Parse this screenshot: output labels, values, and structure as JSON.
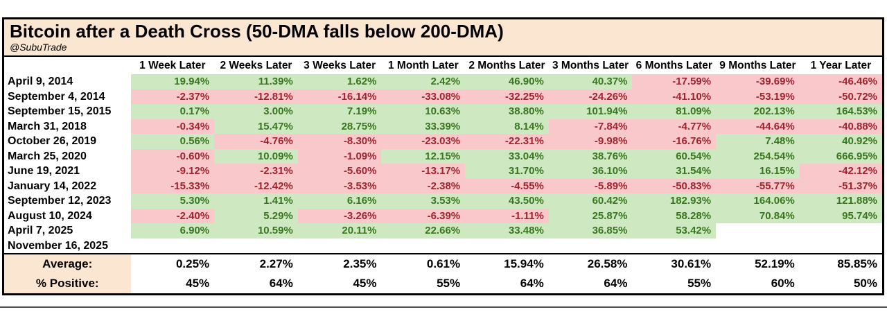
{
  "title": "Bitcoin after a Death Cross (50-DMA falls below 200-DMA)",
  "subtitle": "@SubuTrade",
  "colors": {
    "positive_fill": "#cee9c2",
    "negative_fill": "#f8c8ca",
    "positive_text": "#38761d",
    "negative_text": "#9e2430",
    "title_band_fill": "#fbe6d2",
    "border": "#000000"
  },
  "chart_data": {
    "type": "table",
    "title": "Bitcoin after a Death Cross (50-DMA falls below 200-DMA)",
    "subtitle": "@SubuTrade",
    "columns": [
      "1 Week Later",
      "2 Weeks Later",
      "3 Weeks Later",
      "1 Month Later",
      "2 Months Later",
      "3 Months Later",
      "6 Months Later",
      "9 Months Later",
      "1 Year Later"
    ],
    "rows": [
      {
        "date": "April 9, 2014",
        "values": [
          "19.94%",
          "11.39%",
          "1.62%",
          "2.42%",
          "46.90%",
          "40.37%",
          "-17.59%",
          "-39.69%",
          "-46.46%"
        ]
      },
      {
        "date": "September 4, 2014",
        "values": [
          "-2.37%",
          "-12.81%",
          "-16.14%",
          "-33.08%",
          "-32.25%",
          "-24.26%",
          "-41.10%",
          "-53.19%",
          "-50.72%"
        ]
      },
      {
        "date": "September 15, 2015",
        "values": [
          "0.17%",
          "3.00%",
          "7.19%",
          "10.63%",
          "38.80%",
          "101.94%",
          "81.09%",
          "202.13%",
          "164.53%"
        ]
      },
      {
        "date": "March 31, 2018",
        "values": [
          "-0.34%",
          "15.47%",
          "28.75%",
          "33.39%",
          "8.14%",
          "-7.84%",
          "-4.77%",
          "-44.64%",
          "-40.88%"
        ]
      },
      {
        "date": "October 26, 2019",
        "values": [
          "0.56%",
          "-4.76%",
          "-8.30%",
          "-23.03%",
          "-22.31%",
          "-9.98%",
          "-16.76%",
          "7.48%",
          "40.92%"
        ]
      },
      {
        "date": "March 25, 2020",
        "values": [
          "-0.60%",
          "10.09%",
          "-1.09%",
          "12.15%",
          "33.04%",
          "38.76%",
          "60.54%",
          "254.54%",
          "666.95%"
        ]
      },
      {
        "date": "June 19, 2021",
        "values": [
          "-9.12%",
          "-2.31%",
          "-5.60%",
          "-13.17%",
          "31.70%",
          "36.10%",
          "31.54%",
          "16.15%",
          "-42.12%"
        ]
      },
      {
        "date": "January 14, 2022",
        "values": [
          "-15.33%",
          "-12.42%",
          "-3.53%",
          "-2.38%",
          "-4.55%",
          "-5.89%",
          "-50.83%",
          "-55.77%",
          "-51.37%"
        ]
      },
      {
        "date": "September 12, 2023",
        "values": [
          "5.30%",
          "1.41%",
          "6.16%",
          "3.53%",
          "43.50%",
          "60.42%",
          "182.93%",
          "164.06%",
          "121.88%"
        ]
      },
      {
        "date": "August 10, 2024",
        "values": [
          "-2.40%",
          "5.29%",
          "-3.26%",
          "-6.39%",
          "-1.11%",
          "25.87%",
          "58.28%",
          "70.84%",
          "95.74%"
        ]
      },
      {
        "date": "April 7, 2025",
        "values": [
          "6.90%",
          "10.59%",
          "20.11%",
          "22.66%",
          "33.48%",
          "36.85%",
          "53.42%",
          null,
          null
        ]
      },
      {
        "date": "November 16, 2025",
        "values": [
          null,
          null,
          null,
          null,
          null,
          null,
          null,
          null,
          null
        ]
      }
    ],
    "summary": {
      "average": {
        "label": "Average:",
        "values": [
          "0.25%",
          "2.27%",
          "2.35%",
          "0.61%",
          "15.94%",
          "26.58%",
          "30.61%",
          "52.19%",
          "85.85%"
        ]
      },
      "percent_positive": {
        "label": "% Positive:",
        "values": [
          "45%",
          "64%",
          "45%",
          "55%",
          "64%",
          "64%",
          "55%",
          "60%",
          "50%"
        ]
      }
    }
  }
}
